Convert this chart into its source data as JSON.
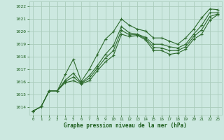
{
  "bg_color": "#cce8e0",
  "grid_color": "#aaccbb",
  "line_color": "#2d6a2d",
  "xlabel": "Graphe pression niveau de la mer (hPa)",
  "xlabel_color": "#1a5c1a",
  "tick_color": "#1a5c1a",
  "xlim": [
    -0.5,
    23.5
  ],
  "ylim": [
    1013.4,
    1022.4
  ],
  "yticks": [
    1014,
    1015,
    1016,
    1017,
    1018,
    1019,
    1020,
    1021,
    1022
  ],
  "xticks": [
    0,
    1,
    2,
    3,
    4,
    5,
    6,
    7,
    8,
    9,
    10,
    11,
    12,
    13,
    14,
    15,
    16,
    17,
    18,
    19,
    20,
    21,
    22,
    23
  ],
  "line1_x": [
    0,
    1,
    2,
    3,
    4,
    5,
    6,
    7,
    8,
    9,
    10,
    11,
    12,
    13,
    14,
    15,
    16,
    17,
    18,
    19,
    20,
    21,
    22,
    23
  ],
  "line1_y": [
    1013.7,
    1014.05,
    1015.3,
    1015.3,
    1016.6,
    1017.8,
    1016.05,
    1017.0,
    1018.2,
    1019.4,
    1020.0,
    1021.0,
    1020.5,
    1020.2,
    1020.05,
    1019.5,
    1019.5,
    1019.25,
    1019.0,
    1019.5,
    1020.2,
    1021.1,
    1021.8,
    1021.75
  ],
  "line2_x": [
    0,
    1,
    2,
    3,
    4,
    5,
    6,
    7,
    8,
    9,
    10,
    11,
    12,
    13,
    14,
    15,
    16,
    17,
    18,
    19,
    20,
    21,
    22,
    23
  ],
  "line2_y": [
    1013.7,
    1014.05,
    1015.3,
    1015.3,
    1016.15,
    1016.7,
    1015.95,
    1016.5,
    1017.3,
    1018.2,
    1018.9,
    1020.4,
    1019.9,
    1019.8,
    1019.55,
    1019.0,
    1019.0,
    1018.8,
    1018.7,
    1019.0,
    1019.8,
    1020.5,
    1021.5,
    1021.5
  ],
  "line3_x": [
    0,
    1,
    2,
    3,
    4,
    5,
    6,
    7,
    8,
    9,
    10,
    11,
    12,
    13,
    14,
    15,
    16,
    17,
    18,
    19,
    20,
    21,
    22,
    23
  ],
  "line3_y": [
    1013.7,
    1014.05,
    1015.3,
    1015.3,
    1016.05,
    1016.4,
    1015.9,
    1016.3,
    1017.1,
    1017.9,
    1018.5,
    1020.1,
    1019.75,
    1019.75,
    1019.45,
    1018.75,
    1018.7,
    1018.5,
    1018.5,
    1018.8,
    1019.6,
    1020.15,
    1021.2,
    1021.4
  ],
  "line4_x": [
    0,
    1,
    2,
    3,
    4,
    5,
    6,
    7,
    8,
    9,
    10,
    11,
    12,
    13,
    14,
    15,
    16,
    17,
    18,
    19,
    20,
    21,
    22,
    23
  ],
  "line4_y": [
    1013.7,
    1014.05,
    1015.3,
    1015.3,
    1015.95,
    1016.1,
    1015.85,
    1016.1,
    1016.9,
    1017.6,
    1018.1,
    1019.8,
    1019.6,
    1019.7,
    1019.35,
    1018.5,
    1018.5,
    1018.2,
    1018.3,
    1018.6,
    1019.4,
    1019.8,
    1020.9,
    1021.35
  ]
}
